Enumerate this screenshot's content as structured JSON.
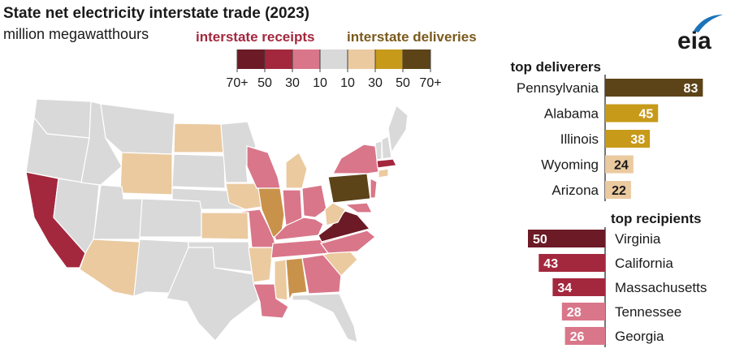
{
  "title": "State net electricity interstate trade (2023)",
  "subtitle": "million megawatthours",
  "logo_text": "eia",
  "legend": {
    "receipts_label": "interstate receipts",
    "deliveries_label": "interstate deliveries",
    "bins": [
      {
        "color": "#6b1a26"
      },
      {
        "color": "#a3283e"
      },
      {
        "color": "#d9768a"
      },
      {
        "color": "#d9d9d9"
      },
      {
        "color": "#ebcaa0"
      },
      {
        "color": "#c79a1a"
      },
      {
        "color": "#5c4318"
      }
    ],
    "ticks": [
      "70+",
      "50",
      "30",
      "10",
      "10",
      "30",
      "50",
      "70+"
    ]
  },
  "colors": {
    "receipt_70": "#6b1a26",
    "receipt_50": "#a3283e",
    "receipt_30": "#d9768a",
    "neutral": "#d9d9d9",
    "delivery_30": "#ebcaa0",
    "delivery_50": "#c79a1a",
    "delivery_70": "#5c4318",
    "brand": "#1b73b8"
  },
  "chart_data": [
    {
      "type": "bar",
      "title": "top deliverers",
      "categories": [
        "Pennsylvania",
        "Alabama",
        "Illinois",
        "Wyoming",
        "Arizona"
      ],
      "values": [
        83,
        45,
        38,
        24,
        22
      ],
      "colors": [
        "#5c4318",
        "#c79a1a",
        "#c79a1a",
        "#ebcaa0",
        "#ebcaa0"
      ]
    },
    {
      "type": "bar",
      "title": "top recipients",
      "categories": [
        "Virginia",
        "California",
        "Massachusetts",
        "Tennessee",
        "Georgia"
      ],
      "values": [
        50,
        43,
        34,
        28,
        26
      ],
      "colors": [
        "#6b1a26",
        "#a3283e",
        "#a3283e",
        "#d9768a",
        "#d9768a"
      ]
    }
  ]
}
